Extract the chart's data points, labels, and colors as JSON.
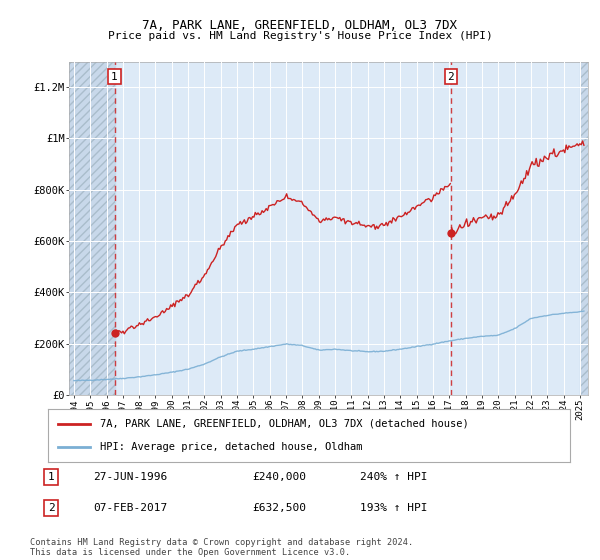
{
  "title1": "7A, PARK LANE, GREENFIELD, OLDHAM, OL3 7DX",
  "title2": "Price paid vs. HM Land Registry's House Price Index (HPI)",
  "ylim": [
    0,
    1300000
  ],
  "xlim_start": 1993.7,
  "xlim_end": 2025.5,
  "yticks": [
    0,
    200000,
    400000,
    600000,
    800000,
    1000000,
    1200000
  ],
  "ytick_labels": [
    "£0",
    "£200K",
    "£400K",
    "£600K",
    "£800K",
    "£1M",
    "£1.2M"
  ],
  "xtick_years": [
    1994,
    1995,
    1996,
    1997,
    1998,
    1999,
    2000,
    2001,
    2002,
    2003,
    2004,
    2005,
    2006,
    2007,
    2008,
    2009,
    2010,
    2011,
    2012,
    2013,
    2014,
    2015,
    2016,
    2017,
    2018,
    2019,
    2020,
    2021,
    2022,
    2023,
    2024,
    2025
  ],
  "hpi_color": "#7bafd4",
  "price_color": "#cc2222",
  "dot_color": "#cc2222",
  "sale1_x": 1996.49,
  "sale1_y": 240000,
  "sale2_x": 2017.09,
  "sale2_y": 632500,
  "legend_line1": "7A, PARK LANE, GREENFIELD, OLDHAM, OL3 7DX (detached house)",
  "legend_line2": "HPI: Average price, detached house, Oldham",
  "table_row1": [
    "1",
    "27-JUN-1996",
    "£240,000",
    "240% ↑ HPI"
  ],
  "table_row2": [
    "2",
    "07-FEB-2017",
    "£632,500",
    "193% ↑ HPI"
  ],
  "footnote": "Contains HM Land Registry data © Crown copyright and database right 2024.\nThis data is licensed under the Open Government Licence v3.0.",
  "background_color": "#ddeaf7",
  "hatch_region_color": "#c8d8ea"
}
